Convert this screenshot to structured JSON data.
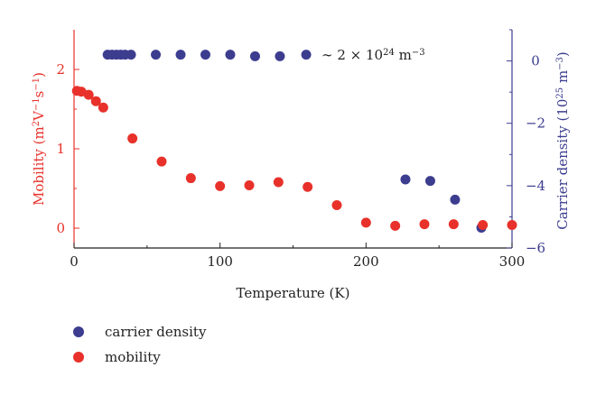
{
  "colors": {
    "mobility": "#e8312a",
    "carrier_density": "#3c3d8f",
    "axis": "#222222"
  },
  "chart_data": {
    "type": "scatter",
    "x_axis": {
      "label": "Temperature (K)",
      "range": [
        0,
        300
      ],
      "ticks": [
        0,
        100,
        200,
        300
      ]
    },
    "y_axis_left": {
      "label_parts": [
        "Mobility (m",
        "2",
        "V",
        "−1",
        "s",
        "−1",
        ")"
      ],
      "range": [
        -0.25,
        2.5
      ],
      "ticks": [
        0,
        1,
        2
      ]
    },
    "y_axis_right": {
      "label_parts": [
        "Carrier density (10",
        "25",
        " m",
        "−3",
        ")"
      ],
      "range": [
        -6,
        1
      ],
      "ticks": [
        "0",
        "−2",
        "−4",
        "−6"
      ],
      "tick_values": [
        0,
        -2,
        -4,
        -6
      ]
    },
    "annotation": {
      "prefix": "∼ 2 × 10",
      "exponent": "24",
      "unit": " m",
      "unit_exponent": "−3"
    },
    "grid": false,
    "legend_placement": "bottom-left",
    "series": [
      {
        "name": "carrier density",
        "axis": "right",
        "color_key": "carrier_density",
        "x": [
          23,
          26,
          29,
          32,
          35,
          39,
          56,
          73,
          90,
          107,
          124,
          141,
          159,
          227,
          244,
          261,
          279
        ],
        "y": [
          0.2,
          0.2,
          0.2,
          0.2,
          0.2,
          0.2,
          0.2,
          0.2,
          0.2,
          0.2,
          0.15,
          0.15,
          0.2,
          -3.8,
          -3.85,
          -4.45,
          -5.35
        ]
      },
      {
        "name": "mobility",
        "axis": "left",
        "color_key": "mobility",
        "x": [
          2,
          5,
          10,
          15,
          20,
          40,
          60,
          80,
          100,
          120,
          140,
          160,
          180,
          200,
          220,
          240,
          260,
          280,
          300
        ],
        "y": [
          1.73,
          1.72,
          1.68,
          1.6,
          1.52,
          1.13,
          0.84,
          0.63,
          0.53,
          0.54,
          0.58,
          0.52,
          0.29,
          0.07,
          0.03,
          0.05,
          0.05,
          0.04,
          0.04
        ]
      }
    ]
  }
}
